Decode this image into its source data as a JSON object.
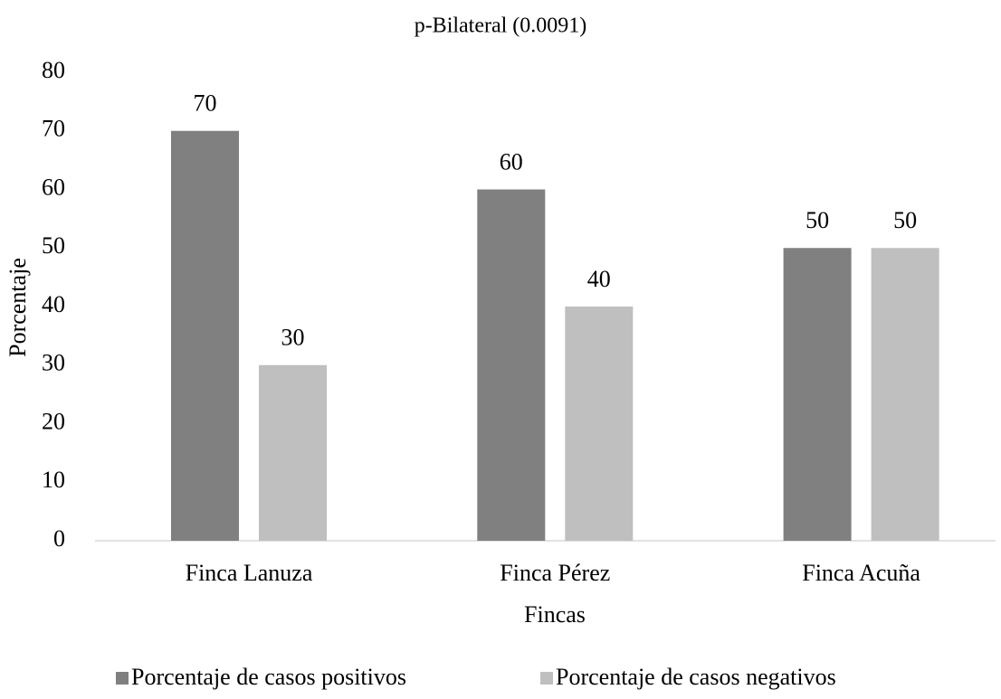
{
  "chart_data": {
    "type": "bar",
    "title": "p-Bilateral (0.0091)",
    "x_label": "Fincas",
    "y_label": "Porcentaje",
    "categories": [
      "Finca Lanuza",
      "Finca Pérez",
      "Finca Acuña"
    ],
    "series": [
      {
        "name": "Porcentaje de casos positivos",
        "color": "#808080",
        "values": [
          70,
          60,
          50
        ]
      },
      {
        "name": "Porcentaje de casos negativos",
        "color": "#bfbfbf",
        "values": [
          30,
          40,
          50
        ]
      }
    ],
    "ylim": [
      0,
      80
    ],
    "yticks": [
      0,
      10,
      20,
      30,
      40,
      50,
      60,
      70,
      80
    ],
    "grid": false,
    "legend": "bottom"
  }
}
